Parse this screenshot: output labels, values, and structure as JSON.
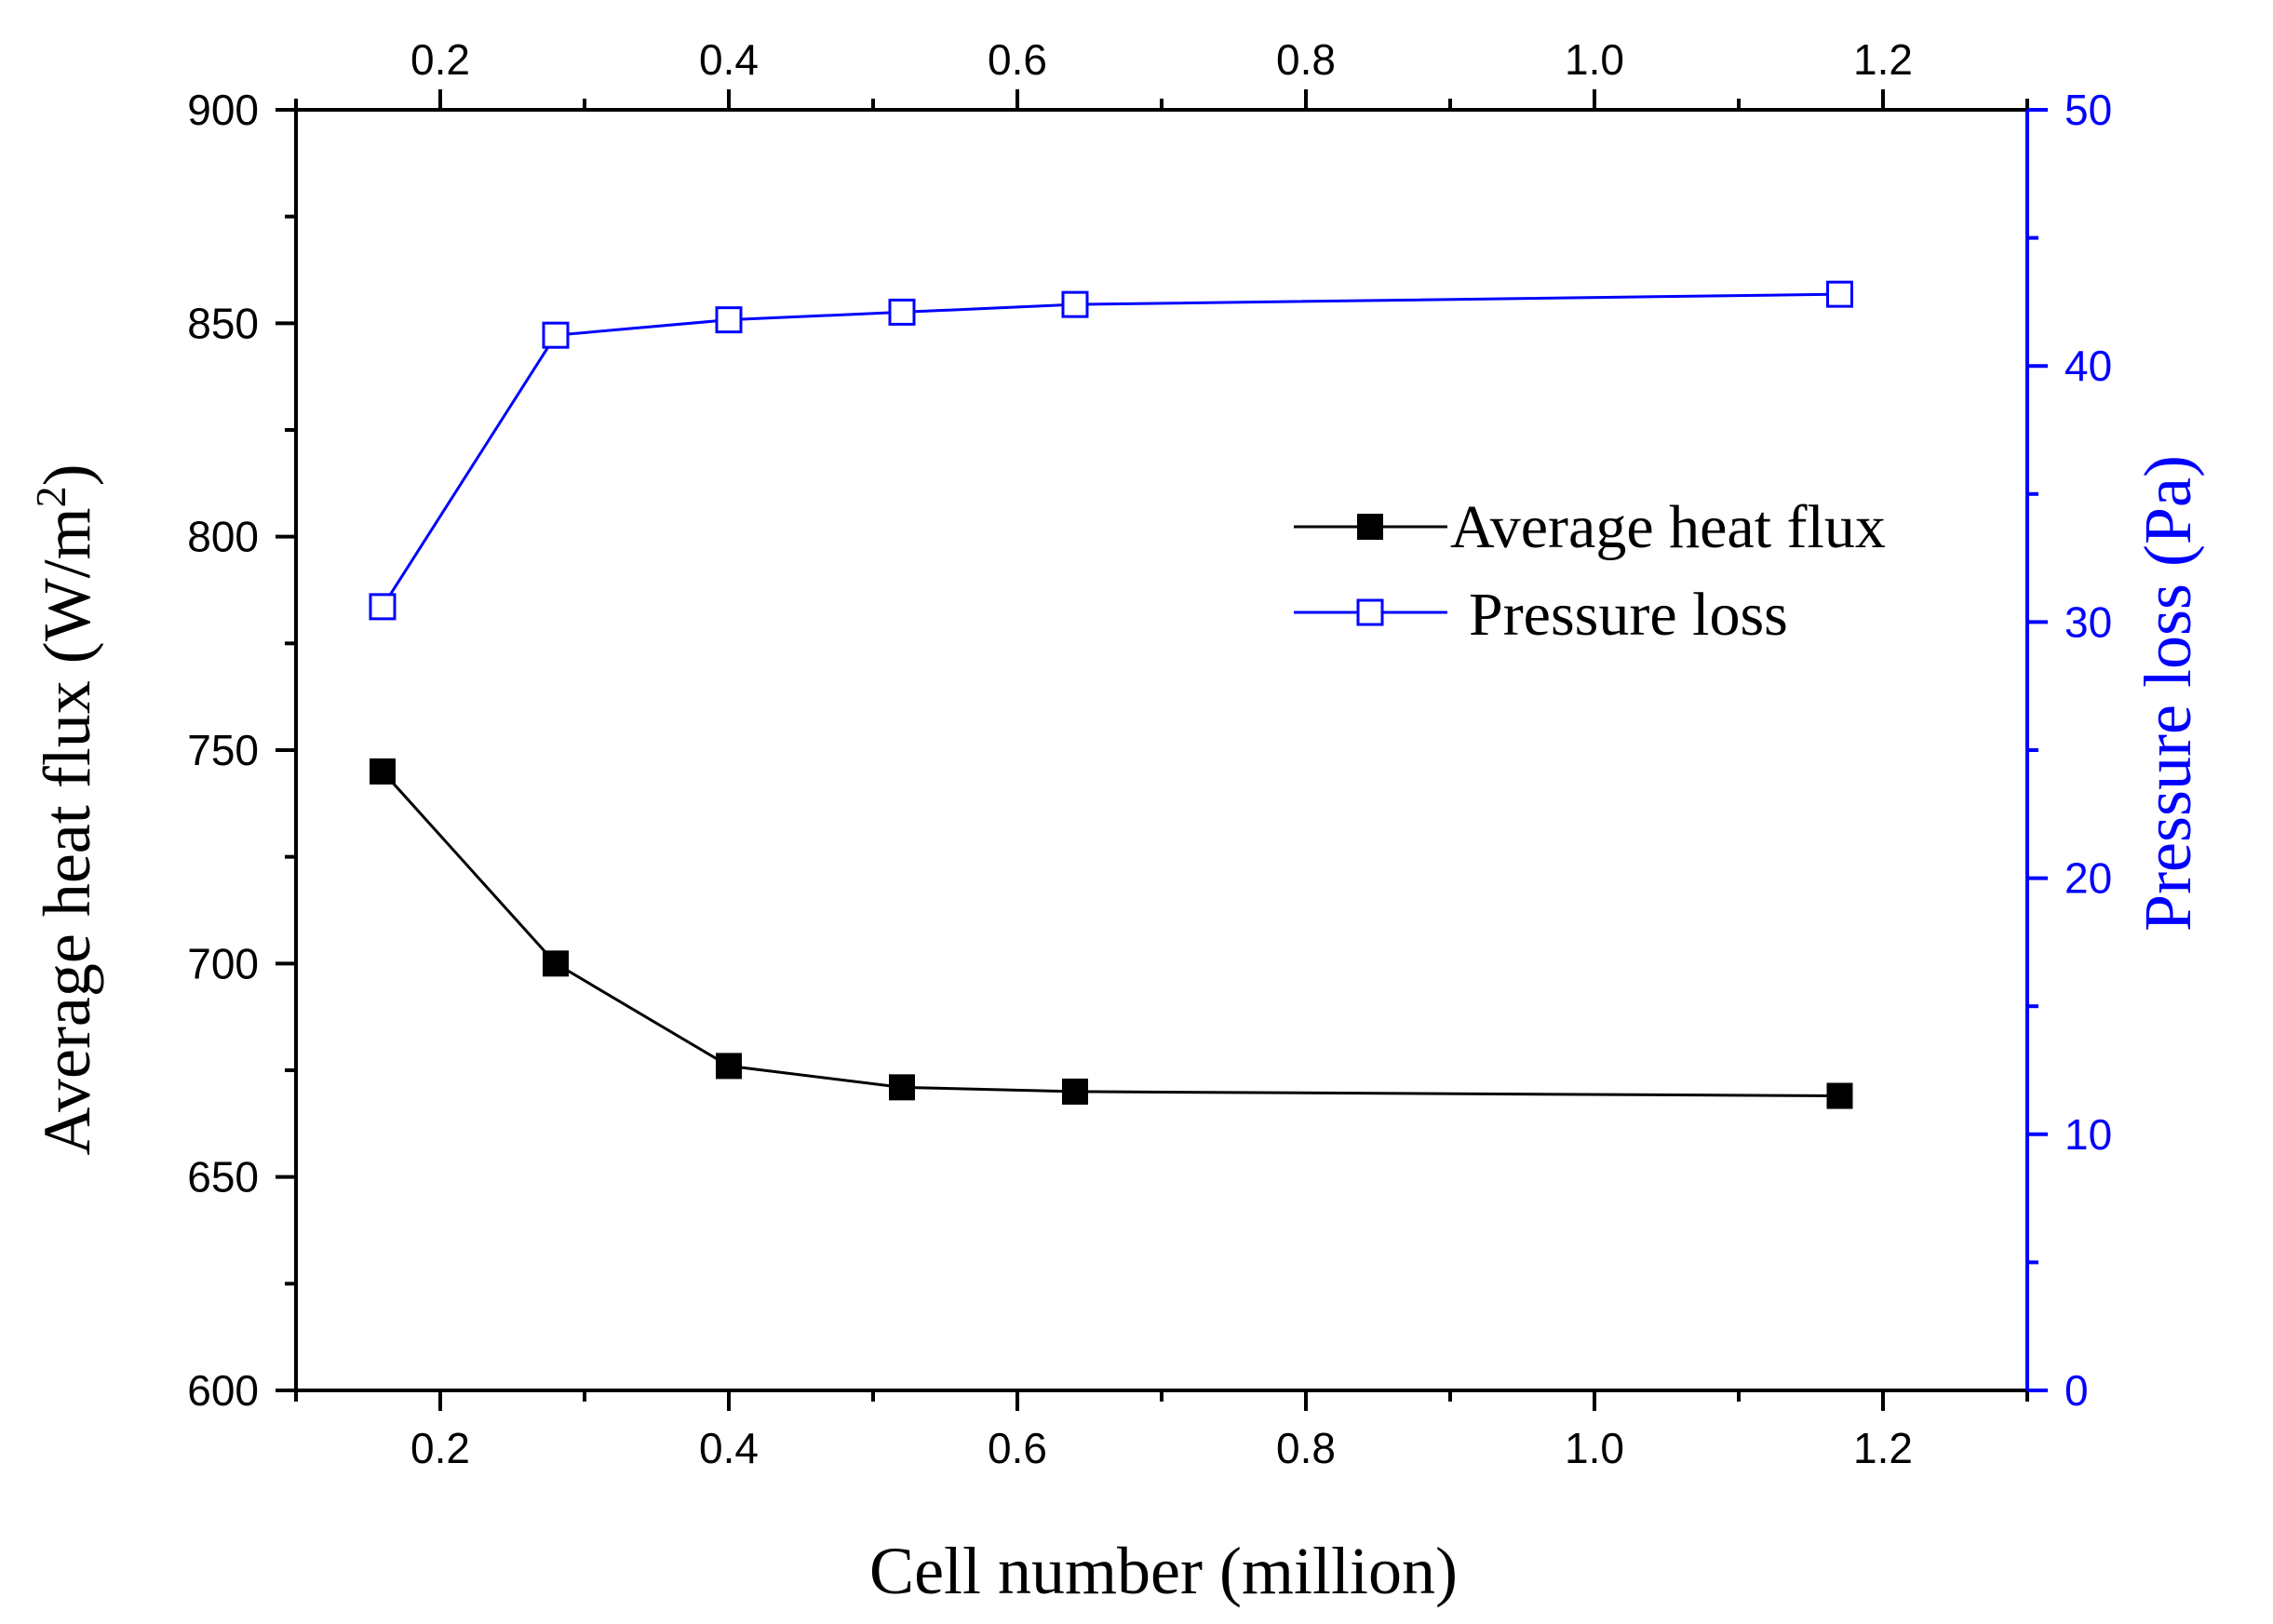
{
  "chart_data": {
    "type": "line",
    "xlabel": "Cell number (million)",
    "ylabel_left": "Average heat flux (W/m",
    "ylabel_left_sup": "2",
    "ylabel_left_close": ")",
    "ylabel_right": "Pressure loss (Pa)",
    "xlim": [
      0.1,
      1.3
    ],
    "ylim_left": [
      600,
      900
    ],
    "ylim_right": [
      0,
      50
    ],
    "x_ticks": [
      "0.2",
      "0.4",
      "0.6",
      "0.8",
      "1.0",
      "1.2"
    ],
    "y_left_ticks": [
      "600",
      "650",
      "700",
      "750",
      "800",
      "850",
      "900"
    ],
    "y_right_ticks": [
      "0",
      "10",
      "20",
      "30",
      "40",
      "50"
    ],
    "grid": false,
    "legend_position": "center-right",
    "series": [
      {
        "name": "Average heat flux",
        "axis": "left",
        "color": "#000000",
        "marker": "filled-square",
        "x": [
          0.16,
          0.28,
          0.4,
          0.52,
          0.64,
          1.17
        ],
        "values": [
          745,
          700,
          676,
          671,
          670,
          669
        ]
      },
      {
        "name": "Pressure loss",
        "axis": "right",
        "color": "#0000ff",
        "marker": "open-square",
        "x": [
          0.16,
          0.28,
          0.4,
          0.52,
          0.64,
          1.17
        ],
        "values": [
          30.6,
          41.2,
          41.8,
          42.1,
          42.4,
          42.8
        ]
      }
    ]
  }
}
